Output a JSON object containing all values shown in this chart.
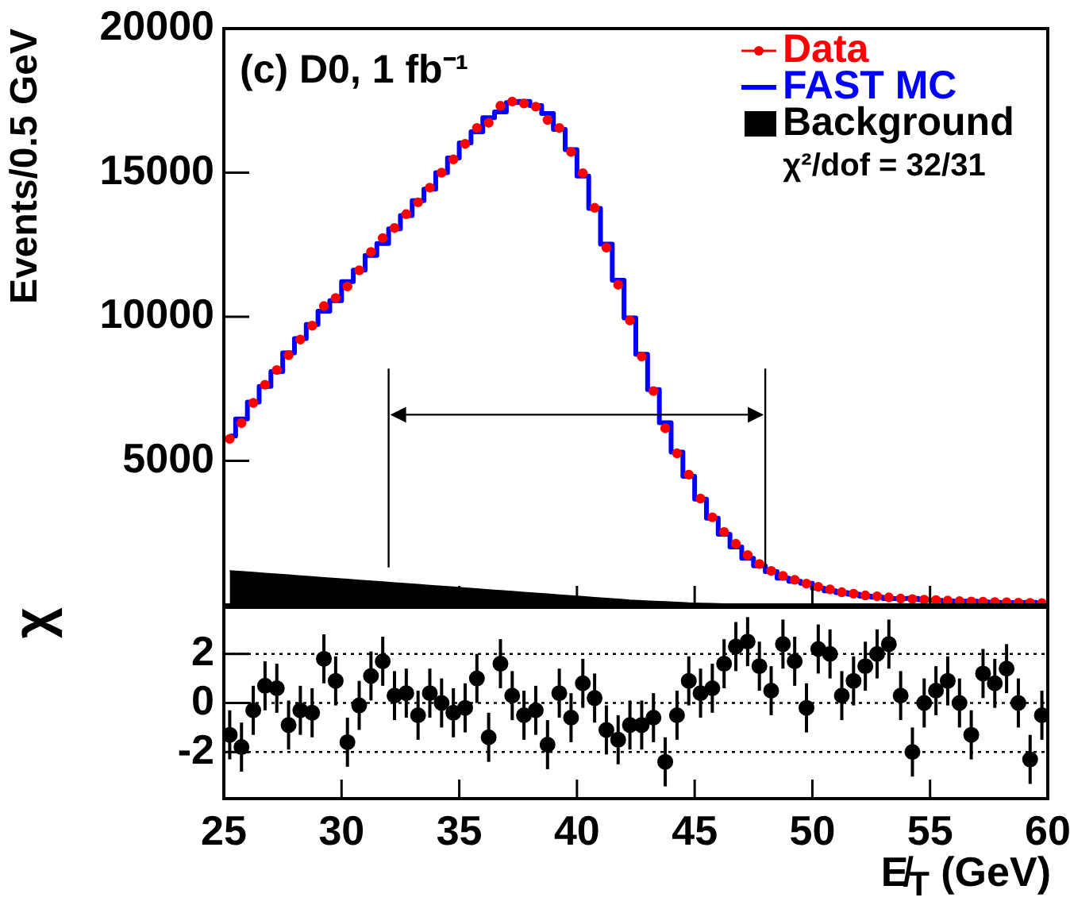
{
  "chart_data": [
    {
      "type": "step",
      "ylabel": "Events/0.5 GeV",
      "annotations": [
        "(c) D0, 1 fb⁻¹",
        "χ²/dof = 32/31"
      ],
      "x": [
        25.25,
        25.75,
        26.25,
        26.75,
        27.25,
        27.75,
        28.25,
        28.75,
        29.25,
        29.75,
        30.25,
        30.75,
        31.25,
        31.75,
        32.25,
        32.75,
        33.25,
        33.75,
        34.25,
        34.75,
        35.25,
        35.75,
        36.25,
        36.75,
        37.25,
        37.75,
        38.25,
        38.75,
        39.25,
        39.75,
        40.25,
        40.75,
        41.25,
        41.75,
        42.25,
        42.75,
        43.25,
        43.75,
        44.25,
        44.75,
        45.25,
        45.75,
        46.25,
        46.75,
        47.25,
        47.75,
        48.25,
        48.75,
        49.25,
        49.75,
        50.25,
        50.75,
        51.25,
        51.75,
        52.25,
        52.75,
        53.25,
        53.75,
        54.25,
        54.75,
        55.25,
        55.75,
        56.25,
        56.75,
        57.25,
        57.75,
        58.25,
        58.75,
        59.25,
        59.75
      ],
      "series": [
        {
          "name": "Background",
          "type": "area",
          "color": "#000000",
          "values": [
            1180,
            1150,
            1120,
            1090,
            1060,
            1030,
            1000,
            970,
            940,
            910,
            880,
            850,
            820,
            790,
            760,
            730,
            700,
            670,
            640,
            610,
            580,
            550,
            520,
            490,
            460,
            430,
            400,
            370,
            340,
            310,
            280,
            250,
            220,
            190,
            160,
            140,
            120,
            100,
            80,
            60,
            50,
            40,
            30,
            20,
            10,
            0,
            0,
            0,
            0,
            0,
            0,
            0,
            0,
            0,
            0,
            0,
            0,
            0,
            0,
            0,
            0,
            0,
            0,
            0,
            0,
            0,
            0,
            0,
            0,
            0
          ]
        },
        {
          "name": "FAST MC",
          "color": "#0000ff",
          "values": [
            5860,
            6450,
            7040,
            7580,
            8100,
            8750,
            9240,
            9730,
            10190,
            10560,
            11220,
            11620,
            12130,
            12540,
            13050,
            13510,
            14030,
            14430,
            15000,
            15510,
            16030,
            16420,
            16910,
            17110,
            17430,
            17470,
            17330,
            17050,
            16500,
            15800,
            14880,
            13760,
            12520,
            11270,
            9960,
            8700,
            7470,
            6320,
            5300,
            4460,
            3670,
            3010,
            2450,
            2010,
            1620,
            1360,
            1160,
            930,
            820,
            750,
            580,
            490,
            430,
            370,
            300,
            270,
            220,
            220,
            230,
            180,
            160,
            140,
            130,
            130,
            100,
            90,
            80,
            80,
            90,
            60
          ]
        },
        {
          "name": "Data",
          "type": "scatter",
          "marker": "circle",
          "color": "#ff0000",
          "values": [
            5760,
            6310,
            7010,
            7640,
            8150,
            8670,
            9210,
            9690,
            10370,
            10650,
            11050,
            11610,
            12250,
            12730,
            13080,
            13560,
            13970,
            14480,
            15000,
            15460,
            16000,
            16550,
            16730,
            17320,
            17470,
            17400,
            17290,
            16830,
            16550,
            15720,
            14980,
            13780,
            12400,
            11110,
            9870,
            8620,
            7420,
            6130,
            5260,
            4520,
            3690,
            3040,
            2530,
            2120,
            1730,
            1420,
            1180,
            1010,
            870,
            740,
            630,
            540,
            440,
            390,
            330,
            300,
            260,
            220,
            200,
            180,
            170,
            150,
            130,
            120,
            110,
            100,
            90,
            80,
            70,
            60
          ]
        }
      ],
      "xlim": [
        25,
        60
      ],
      "xticks": [
        25,
        30,
        35,
        40,
        45,
        50,
        55,
        60
      ],
      "ylim": [
        0,
        20000
      ],
      "yticks": [
        5000,
        10000,
        15000,
        20000
      ],
      "tick_labels": "y",
      "legend": "top right",
      "ref_lines": [
        {
          "axis": "x",
          "value": 32,
          "color": "#000000"
        },
        {
          "axis": "x",
          "value": 48,
          "color": "#000000"
        }
      ]
    },
    {
      "type": "scatter",
      "ylabel": "χ",
      "xlabel": "E̸$_{T}$ (GeV)",
      "color": "#000000",
      "marker": "circle",
      "x": [
        25.25,
        25.75,
        26.25,
        26.75,
        27.25,
        27.75,
        28.25,
        28.75,
        29.25,
        29.75,
        30.25,
        30.75,
        31.25,
        31.75,
        32.25,
        32.75,
        33.25,
        33.75,
        34.25,
        34.75,
        35.25,
        35.75,
        36.25,
        36.75,
        37.25,
        37.75,
        38.25,
        38.75,
        39.25,
        39.75,
        40.25,
        40.75,
        41.25,
        41.75,
        42.25,
        42.75,
        43.25,
        43.75,
        44.25,
        44.75,
        45.25,
        45.75,
        46.25,
        46.75,
        47.25,
        47.75,
        48.25,
        48.75,
        49.25,
        49.75,
        50.25,
        50.75,
        51.25,
        51.75,
        52.25,
        52.75,
        53.25,
        53.75,
        54.25,
        54.75,
        55.25,
        55.75,
        56.25,
        56.75,
        57.25,
        57.75,
        58.25,
        58.75,
        59.25,
        59.75
      ],
      "values": [
        -1.3,
        -1.8,
        -0.3,
        0.7,
        0.6,
        -0.9,
        -0.3,
        -0.4,
        1.8,
        0.9,
        -1.6,
        -0.1,
        1.1,
        1.7,
        0.3,
        0.4,
        -0.5,
        0.4,
        0.0,
        -0.4,
        -0.2,
        1.0,
        -1.4,
        1.6,
        0.3,
        -0.5,
        -0.3,
        -1.7,
        0.4,
        -0.6,
        0.8,
        0.2,
        -1.1,
        -1.5,
        -0.9,
        -0.9,
        -0.6,
        -2.4,
        -0.5,
        0.9,
        0.4,
        0.6,
        1.6,
        2.3,
        2.5,
        1.5,
        0.5,
        2.4,
        1.7,
        -0.2,
        2.2,
        2.0,
        0.3,
        0.9,
        1.5,
        2.0,
        2.4,
        0.3,
        -2.0,
        0.0,
        0.5,
        0.9,
        0.0,
        -1.3,
        1.2,
        0.8,
        1.4,
        0.0,
        -2.3,
        -0.5
      ],
      "errors": [
        1,
        1,
        1,
        1,
        1,
        1,
        1,
        1,
        1,
        1,
        1,
        1,
        1,
        1,
        1,
        1,
        1,
        1,
        1,
        1,
        1,
        1,
        1,
        1,
        1,
        1,
        1,
        1,
        1,
        1,
        1,
        1,
        1,
        1,
        1,
        1,
        1,
        1,
        1,
        1,
        1,
        1,
        1,
        1,
        1,
        1,
        1,
        1,
        1,
        1,
        1,
        1,
        1,
        1,
        1,
        1,
        1,
        1,
        1,
        1,
        1,
        1,
        1,
        1,
        1,
        1,
        1,
        1,
        1,
        1
      ],
      "xlim": [
        25,
        60
      ],
      "xticks": [
        25,
        30,
        35,
        40,
        45,
        50,
        55,
        60
      ],
      "ylim": [
        -3.9,
        3.9
      ],
      "yticks": [
        -2,
        0,
        2
      ],
      "ref_lines": [
        {
          "axis": "y",
          "value": -2,
          "line_style": "dotted"
        },
        {
          "axis": "y",
          "value": 0,
          "line_style": "dotted"
        },
        {
          "axis": "y",
          "value": 2,
          "line_style": "dotted"
        }
      ]
    }
  ]
}
